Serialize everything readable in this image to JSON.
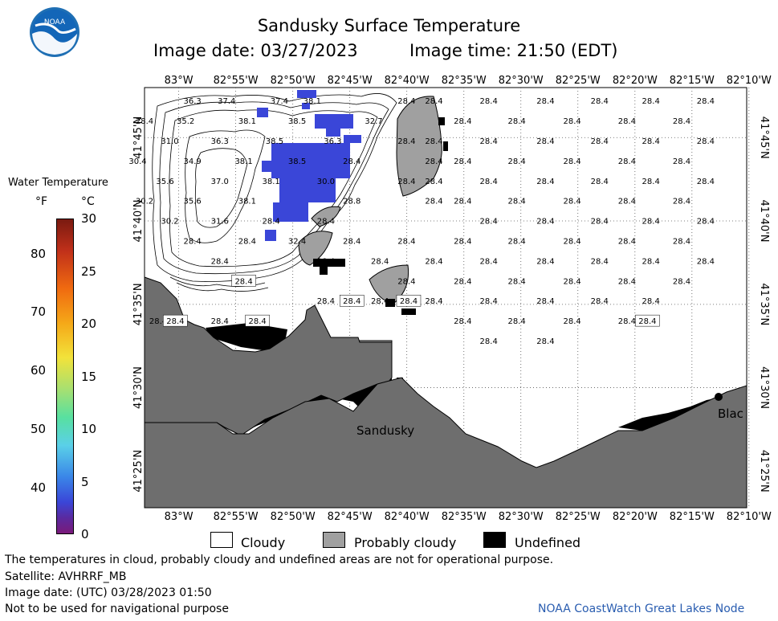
{
  "title": "Sandusky Surface Temperature",
  "image_date_label": "Image date: 03/27/2023",
  "image_time_label": "Image time: 21:50 (EDT)",
  "colorbar": {
    "title": "Water Temperature",
    "unit_f": "°F",
    "unit_c": "°C",
    "f_ticks": [
      "80",
      "70",
      "60",
      "50",
      "40"
    ],
    "c_ticks": [
      "30",
      "25",
      "20",
      "15",
      "10",
      "5",
      "0"
    ]
  },
  "map": {
    "lon_labels": [
      "83°W",
      "82°55'W",
      "82°50'W",
      "82°45'W",
      "82°40'W",
      "82°35'W",
      "82°30'W",
      "82°25'W",
      "82°20'W",
      "82°15'W",
      "82°10'W"
    ],
    "lat_labels": [
      "41°45'N",
      "41°40'N",
      "41°35'N",
      "41°30'N",
      "41°25'N"
    ],
    "city_sandusky": "Sandusky",
    "city_bl": "Blac",
    "temps": [
      {
        "t": "36.3",
        "lon": -82.98,
        "lat": 41.787
      },
      {
        "t": "37.4",
        "lon": -82.93,
        "lat": 41.787
      },
      {
        "t": "37.4",
        "lon": -82.853,
        "lat": 41.787
      },
      {
        "t": "38.1",
        "lon": -82.805,
        "lat": 41.787
      },
      {
        "t": "28.4",
        "lon": -82.667,
        "lat": 41.787
      },
      {
        "t": "28.4",
        "lon": -82.627,
        "lat": 41.787
      },
      {
        "t": "28.4",
        "lon": -82.547,
        "lat": 41.787
      },
      {
        "t": "28.4",
        "lon": -82.464,
        "lat": 41.787
      },
      {
        "t": "28.4",
        "lon": -82.385,
        "lat": 41.787
      },
      {
        "t": "28.4",
        "lon": -82.31,
        "lat": 41.787
      },
      {
        "t": "28.4",
        "lon": -82.23,
        "lat": 41.787
      },
      {
        "t": "28.4",
        "lon": -83.05,
        "lat": 41.767
      },
      {
        "t": "35.2",
        "lon": -82.99,
        "lat": 41.767
      },
      {
        "t": "38.1",
        "lon": -82.9,
        "lat": 41.767
      },
      {
        "t": "38.5",
        "lon": -82.827,
        "lat": 41.767
      },
      {
        "t": "32.7",
        "lon": -82.715,
        "lat": 41.767
      },
      {
        "t": "28.4",
        "lon": -82.585,
        "lat": 41.767
      },
      {
        "t": "28.4",
        "lon": -82.506,
        "lat": 41.767
      },
      {
        "t": "28.4",
        "lon": -82.425,
        "lat": 41.767
      },
      {
        "t": "28.4",
        "lon": -82.345,
        "lat": 41.767
      },
      {
        "t": "28.4",
        "lon": -82.265,
        "lat": 41.767
      },
      {
        "t": "31.0",
        "lon": -83.013,
        "lat": 41.747
      },
      {
        "t": "36.3",
        "lon": -82.94,
        "lat": 41.747
      },
      {
        "t": "38.5",
        "lon": -82.86,
        "lat": 41.747
      },
      {
        "t": "36.3",
        "lon": -82.775,
        "lat": 41.747
      },
      {
        "t": "28.4",
        "lon": -82.667,
        "lat": 41.747
      },
      {
        "t": "28.4",
        "lon": -82.627,
        "lat": 41.747
      },
      {
        "t": "28.4",
        "lon": -82.547,
        "lat": 41.747
      },
      {
        "t": "28.4",
        "lon": -82.464,
        "lat": 41.747
      },
      {
        "t": "28.4",
        "lon": -82.385,
        "lat": 41.747
      },
      {
        "t": "28.4",
        "lon": -82.31,
        "lat": 41.747
      },
      {
        "t": "28.4",
        "lon": -82.23,
        "lat": 41.747
      },
      {
        "t": "30.4",
        "lon": -83.06,
        "lat": 41.727
      },
      {
        "t": "34.9",
        "lon": -82.98,
        "lat": 41.727
      },
      {
        "t": "38.1",
        "lon": -82.905,
        "lat": 41.727
      },
      {
        "t": "38.5",
        "lon": -82.827,
        "lat": 41.727
      },
      {
        "t": "28.4",
        "lon": -82.747,
        "lat": 41.727
      },
      {
        "t": "28.4",
        "lon": -82.627,
        "lat": 41.727
      },
      {
        "t": "28.4",
        "lon": -82.585,
        "lat": 41.727
      },
      {
        "t": "28.4",
        "lon": -82.506,
        "lat": 41.727
      },
      {
        "t": "28.4",
        "lon": -82.425,
        "lat": 41.727
      },
      {
        "t": "28.4",
        "lon": -82.345,
        "lat": 41.727
      },
      {
        "t": "28.4",
        "lon": -82.265,
        "lat": 41.727
      },
      {
        "t": "35.6",
        "lon": -83.02,
        "lat": 41.707
      },
      {
        "t": "37.0",
        "lon": -82.94,
        "lat": 41.707
      },
      {
        "t": "38.1",
        "lon": -82.865,
        "lat": 41.707
      },
      {
        "t": "30.0",
        "lon": -82.785,
        "lat": 41.707
      },
      {
        "t": "28.4",
        "lon": -82.667,
        "lat": 41.707
      },
      {
        "t": "28.4",
        "lon": -82.627,
        "lat": 41.707
      },
      {
        "t": "28.4",
        "lon": -82.547,
        "lat": 41.707
      },
      {
        "t": "28.4",
        "lon": -82.464,
        "lat": 41.707
      },
      {
        "t": "28.4",
        "lon": -82.385,
        "lat": 41.707
      },
      {
        "t": "28.4",
        "lon": -82.31,
        "lat": 41.707
      },
      {
        "t": "28.4",
        "lon": -82.23,
        "lat": 41.707
      },
      {
        "t": "30.2",
        "lon": -83.05,
        "lat": 41.687
      },
      {
        "t": "35.6",
        "lon": -82.98,
        "lat": 41.687
      },
      {
        "t": "38.1",
        "lon": -82.9,
        "lat": 41.687
      },
      {
        "t": "28.8",
        "lon": -82.747,
        "lat": 41.687
      },
      {
        "t": "28.4",
        "lon": -82.627,
        "lat": 41.687
      },
      {
        "t": "28.4",
        "lon": -82.585,
        "lat": 41.687
      },
      {
        "t": "28.4",
        "lon": -82.506,
        "lat": 41.687
      },
      {
        "t": "28.4",
        "lon": -82.425,
        "lat": 41.687
      },
      {
        "t": "28.4",
        "lon": -82.345,
        "lat": 41.687
      },
      {
        "t": "28.4",
        "lon": -82.265,
        "lat": 41.687
      },
      {
        "t": "30.2",
        "lon": -83.013,
        "lat": 41.667
      },
      {
        "t": "31.6",
        "lon": -82.94,
        "lat": 41.667
      },
      {
        "t": "28.4",
        "lon": -82.865,
        "lat": 41.667
      },
      {
        "t": "28.4",
        "lon": -82.785,
        "lat": 41.667
      },
      {
        "t": "28.4",
        "lon": -82.547,
        "lat": 41.667
      },
      {
        "t": "28.4",
        "lon": -82.464,
        "lat": 41.667
      },
      {
        "t": "28.4",
        "lon": -82.385,
        "lat": 41.667
      },
      {
        "t": "28.4",
        "lon": -82.31,
        "lat": 41.667
      },
      {
        "t": "28.4",
        "lon": -82.23,
        "lat": 41.667
      },
      {
        "t": "28.4",
        "lon": -82.98,
        "lat": 41.647
      },
      {
        "t": "28.4",
        "lon": -82.9,
        "lat": 41.647
      },
      {
        "t": "32.4",
        "lon": -82.827,
        "lat": 41.647
      },
      {
        "t": "28.4",
        "lon": -82.747,
        "lat": 41.647
      },
      {
        "t": "28.4",
        "lon": -82.667,
        "lat": 41.647
      },
      {
        "t": "28.4",
        "lon": -82.585,
        "lat": 41.647
      },
      {
        "t": "28.4",
        "lon": -82.506,
        "lat": 41.647
      },
      {
        "t": "28.4",
        "lon": -82.425,
        "lat": 41.647
      },
      {
        "t": "28.4",
        "lon": -82.345,
        "lat": 41.647
      },
      {
        "t": "28.4",
        "lon": -82.265,
        "lat": 41.647
      },
      {
        "t": "28.4",
        "lon": -82.94,
        "lat": 41.627
      },
      {
        "t": "28.4",
        "lon": -82.785,
        "lat": 41.627
      },
      {
        "t": "28.4",
        "lon": -82.706,
        "lat": 41.627
      },
      {
        "t": "28.4",
        "lon": -82.627,
        "lat": 41.627
      },
      {
        "t": "28.4",
        "lon": -82.547,
        "lat": 41.627
      },
      {
        "t": "28.4",
        "lon": -82.464,
        "lat": 41.627
      },
      {
        "t": "28.4",
        "lon": -82.385,
        "lat": 41.627
      },
      {
        "t": "28.4",
        "lon": -82.31,
        "lat": 41.627
      },
      {
        "t": "28.4",
        "lon": -82.23,
        "lat": 41.627
      },
      {
        "t": "28.4",
        "lon": -82.667,
        "lat": 41.607
      },
      {
        "t": "28.4",
        "lon": -82.585,
        "lat": 41.607
      },
      {
        "t": "28.4",
        "lon": -82.506,
        "lat": 41.607
      },
      {
        "t": "28.4",
        "lon": -82.425,
        "lat": 41.607
      },
      {
        "t": "28.4",
        "lon": -82.345,
        "lat": 41.607
      },
      {
        "t": "28.4",
        "lon": -82.265,
        "lat": 41.607
      },
      {
        "t": "28.4",
        "lon": -82.785,
        "lat": 41.587
      },
      {
        "t": "28.4",
        "lon": -82.706,
        "lat": 41.587
      },
      {
        "t": "28.4",
        "lon": -82.627,
        "lat": 41.587
      },
      {
        "t": "28.4",
        "lon": -82.547,
        "lat": 41.587
      },
      {
        "t": "28.4",
        "lon": -82.464,
        "lat": 41.587
      },
      {
        "t": "28.4",
        "lon": -82.385,
        "lat": 41.587
      },
      {
        "t": "28.4",
        "lon": -82.31,
        "lat": 41.587
      },
      {
        "t": "28.4",
        "lon": -83.03,
        "lat": 41.567
      },
      {
        "t": "28.4",
        "lon": -82.94,
        "lat": 41.567
      },
      {
        "t": "28.4",
        "lon": -82.585,
        "lat": 41.567
      },
      {
        "t": "28.4",
        "lon": -82.506,
        "lat": 41.567
      },
      {
        "t": "28.4",
        "lon": -82.425,
        "lat": 41.567
      },
      {
        "t": "28.4",
        "lon": -82.345,
        "lat": 41.567
      },
      {
        "t": "28.4",
        "lon": -82.547,
        "lat": 41.547
      },
      {
        "t": "28.4",
        "lon": -82.464,
        "lat": 41.547
      }
    ],
    "boxed_temps": [
      {
        "t": "28.4",
        "lon": -82.905,
        "lat": 41.607
      },
      {
        "t": "28.4",
        "lon": -82.747,
        "lat": 41.587
      },
      {
        "t": "28.4",
        "lon": -82.664,
        "lat": 41.587
      },
      {
        "t": "28.4",
        "lon": -83.005,
        "lat": 41.567
      },
      {
        "t": "28.4",
        "lon": -82.885,
        "lat": 41.567
      },
      {
        "t": "28.4",
        "lon": -82.315,
        "lat": 41.567
      }
    ]
  },
  "legend": {
    "cloudy": "Cloudy",
    "probably_cloudy": "Probably cloudy",
    "undefined": "Undefined"
  },
  "footer": {
    "line1": "The temperatures in cloud, probably cloudy and undefined areas are not for operational purpose.",
    "line2": "Satellite: AVHRRF_MB",
    "line3": "Image date: (UTC) 03/28/2023  01:50",
    "line4": "Not to be used for navigational purpose",
    "credit": "NOAA CoastWatch Great Lakes Node"
  },
  "colors": {
    "land": "#6e6e6e",
    "probably_cloudy": "#a0a0a0",
    "undefined": "#000000",
    "warm_pixels": "#3a46d8",
    "credit_text": "#2a5db0",
    "noaa_blue": "#1f6fb4"
  }
}
